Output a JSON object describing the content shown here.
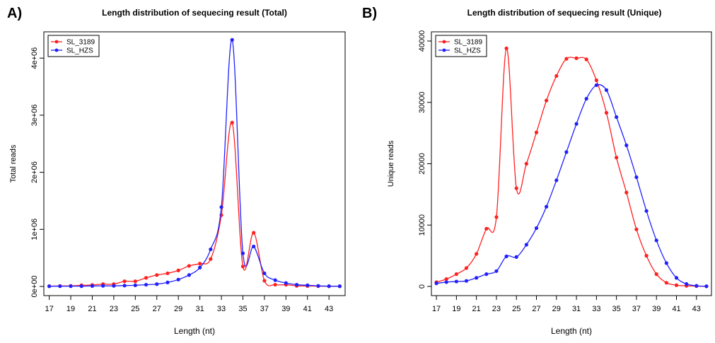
{
  "panels": {
    "a_letter": "A)",
    "b_letter": "B)"
  },
  "chart_data": [
    {
      "type": "line",
      "title": "Length distribution of sequecing result (Total)",
      "xlabel": "Length  (nt)",
      "ylabel": "Total reads",
      "xlim": [
        17,
        44
      ],
      "ylim": [
        0,
        4300000
      ],
      "x_ticks": [
        17,
        19,
        21,
        23,
        25,
        27,
        29,
        31,
        33,
        35,
        37,
        39,
        41,
        43
      ],
      "y_ticks": [
        0,
        1000000,
        2000000,
        3000000,
        4000000
      ],
      "y_tick_labels": [
        "0e+00",
        "1e+06",
        "2e+06",
        "3e+06",
        "4e+06"
      ],
      "legend_position": "top-left",
      "x": [
        17,
        18,
        19,
        20,
        21,
        22,
        23,
        24,
        25,
        26,
        27,
        28,
        29,
        30,
        31,
        32,
        33,
        34,
        35,
        36,
        37,
        38,
        39,
        40,
        41,
        42,
        43,
        44
      ],
      "series": [
        {
          "name": "SL_3189",
          "color": "#ff2020",
          "values": [
            5000,
            8000,
            10000,
            20000,
            25000,
            40000,
            40000,
            90000,
            90000,
            150000,
            200000,
            230000,
            280000,
            360000,
            400000,
            480000,
            1250000,
            2870000,
            350000,
            940000,
            100000,
            30000,
            30000,
            10000,
            8000,
            5000,
            3000,
            3000
          ]
        },
        {
          "name": "SL_HZS",
          "color": "#2020ff",
          "values": [
            3000,
            4000,
            5000,
            5000,
            8000,
            10000,
            10000,
            15000,
            20000,
            30000,
            40000,
            70000,
            120000,
            200000,
            330000,
            650000,
            1390000,
            4320000,
            580000,
            700000,
            230000,
            110000,
            60000,
            30000,
            20000,
            10000,
            5000,
            3000
          ]
        }
      ]
    },
    {
      "type": "line",
      "title": "Length distribution of sequecing result (Unique)",
      "xlabel": "Length (nt)",
      "ylabel": "Unique reads",
      "xlim": [
        17,
        44
      ],
      "ylim": [
        0,
        40000
      ],
      "x_ticks": [
        17,
        19,
        21,
        23,
        25,
        27,
        29,
        31,
        33,
        35,
        37,
        39,
        41,
        43
      ],
      "y_ticks": [
        0,
        10000,
        20000,
        30000,
        40000
      ],
      "y_tick_labels": [
        "0",
        "10000",
        "20000",
        "30000",
        "40000"
      ],
      "legend_position": "top-left",
      "x": [
        17,
        18,
        19,
        20,
        21,
        22,
        23,
        24,
        25,
        26,
        27,
        28,
        29,
        30,
        31,
        32,
        33,
        34,
        35,
        36,
        37,
        38,
        39,
        40,
        41,
        42,
        43,
        44
      ],
      "series": [
        {
          "name": "SL_3189",
          "color": "#ff2020",
          "values": [
            700,
            1200,
            2000,
            3000,
            5300,
            9400,
            11300,
            38800,
            16000,
            20000,
            25100,
            30300,
            34300,
            37100,
            37200,
            37000,
            33600,
            28300,
            21000,
            15300,
            9300,
            5000,
            2000,
            600,
            200,
            100,
            50,
            20
          ]
        },
        {
          "name": "SL_HZS",
          "color": "#2020ff",
          "values": [
            500,
            700,
            800,
            900,
            1400,
            2000,
            2500,
            4900,
            4800,
            6800,
            9500,
            13000,
            17300,
            21900,
            26500,
            30600,
            32800,
            32000,
            27600,
            23000,
            17800,
            12300,
            7500,
            3800,
            1400,
            400,
            100,
            30
          ]
        }
      ]
    }
  ]
}
